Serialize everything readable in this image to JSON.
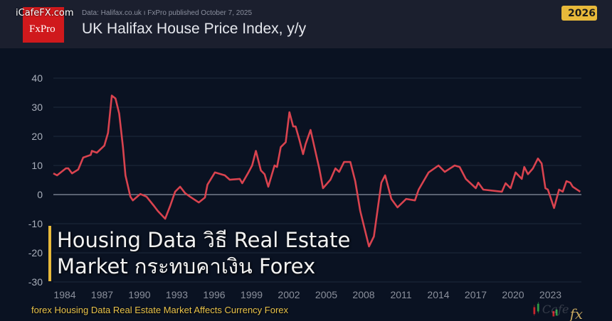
{
  "header": {
    "logo_site": "iCafeFX.com",
    "logo_brand": "FxPro",
    "source": "Data: Halifax.co.uk  ı  FxPro published October 7, 2025",
    "title": "UK Halifax House Price Index, y/y",
    "year_badge": "2026"
  },
  "overlay": {
    "title_line1": "Housing Data วิธี Real Estate",
    "title_line2": "Market กระทบคาเงิน Forex",
    "subtitle": "forex Housing Data Real Estate Market Affects Currency Forex",
    "watermark": "iCafeFX"
  },
  "colors": {
    "line": "#d9434f",
    "accent": "#e8b93a",
    "background": "#0a1222",
    "header": "#1b1f2e"
  },
  "chart_data": {
    "type": "line",
    "title": "UK Halifax House Price Index, y/y",
    "xlabel": "",
    "ylabel": "",
    "xlim": [
      1983.1,
      2025.6
    ],
    "ylim": [
      -30,
      40
    ],
    "yticks": [
      40,
      30,
      20,
      10,
      0,
      -10,
      -20,
      -30
    ],
    "xticks": [
      1984,
      1987,
      1990,
      1993,
      1996,
      1999,
      2002,
      2005,
      2008,
      2011,
      2014,
      2017,
      2020,
      2023
    ],
    "grid": true,
    "series": [
      {
        "x": [
          1983.1,
          1983.4,
          1984.1,
          1984.3,
          1984.6,
          1985.1,
          1985.5,
          1986.1,
          1986.2,
          1986.6,
          1987.2,
          1987.5,
          1987.8,
          1988.1,
          1988.4,
          1988.7,
          1988.9,
          1989.3,
          1989.5,
          1990.1,
          1990.6,
          1991.2,
          1991.5,
          1992.1,
          1992.5,
          1992.9,
          1993.3,
          1993.7,
          1994.1,
          1994.8,
          1995.3,
          1995.5,
          1996.1,
          1996.9,
          1997.3,
          1998.1,
          1998.3,
          1998.8,
          1999.1,
          1999.4,
          1999.8,
          2000.1,
          2000.4,
          2000.9,
          2001.1,
          2001.4,
          2001.8,
          2002.1,
          2002.4,
          2002.6,
          2002.9,
          2003.2,
          2003.4,
          2003.8,
          2004.5,
          2004.8,
          2005.4,
          2005.8,
          2006.1,
          2006.5,
          2007.0,
          2007.4,
          2007.8,
          2008.5,
          2008.9,
          2009.5,
          2009.8,
          2010.3,
          2010.8,
          2011.5,
          2012.2,
          2012.5,
          2013.3,
          2014.1,
          2014.6,
          2015.4,
          2015.8,
          2016.3,
          2017.1,
          2017.3,
          2017.7,
          2019.2,
          2019.5,
          2019.9,
          2020.3,
          2020.8,
          2021.0,
          2021.3,
          2021.7,
          2022.1,
          2022.4,
          2022.7,
          2022.9,
          2023.4,
          2023.8,
          2024.1,
          2024.4,
          2024.7,
          2024.9,
          2025.5
        ],
        "values": [
          7.3,
          6.6,
          9,
          9,
          7.3,
          8.6,
          12.7,
          13.6,
          15,
          14.4,
          16.8,
          21.2,
          34,
          33,
          27.8,
          16.3,
          6.6,
          -0.7,
          -2,
          0.2,
          -0.7,
          -3.9,
          -5.6,
          -8.3,
          -3.9,
          1,
          2.7,
          0.5,
          -0.7,
          -2.7,
          -1,
          3.4,
          7.6,
          6.6,
          5.1,
          5.4,
          3.9,
          7.6,
          10,
          15,
          8.3,
          7,
          2.7,
          10,
          9.5,
          16.3,
          18,
          28.3,
          23.4,
          23.4,
          18.8,
          13.9,
          17.3,
          22.2,
          9,
          2.2,
          5.1,
          9,
          7.8,
          11.2,
          11.2,
          4.6,
          -5.6,
          -17.8,
          -14.4,
          4.1,
          6.6,
          -1.5,
          -4.4,
          -1.5,
          -2,
          1.7,
          7.6,
          10,
          7.8,
          10,
          9.5,
          5.4,
          2.2,
          4.1,
          1.7,
          1,
          3.9,
          2.2,
          7.6,
          5.4,
          9.5,
          7,
          9,
          12.4,
          10.7,
          2.2,
          1.7,
          -4.6,
          1.7,
          1,
          4.6,
          4.1,
          2.7,
          1
        ]
      }
    ]
  }
}
